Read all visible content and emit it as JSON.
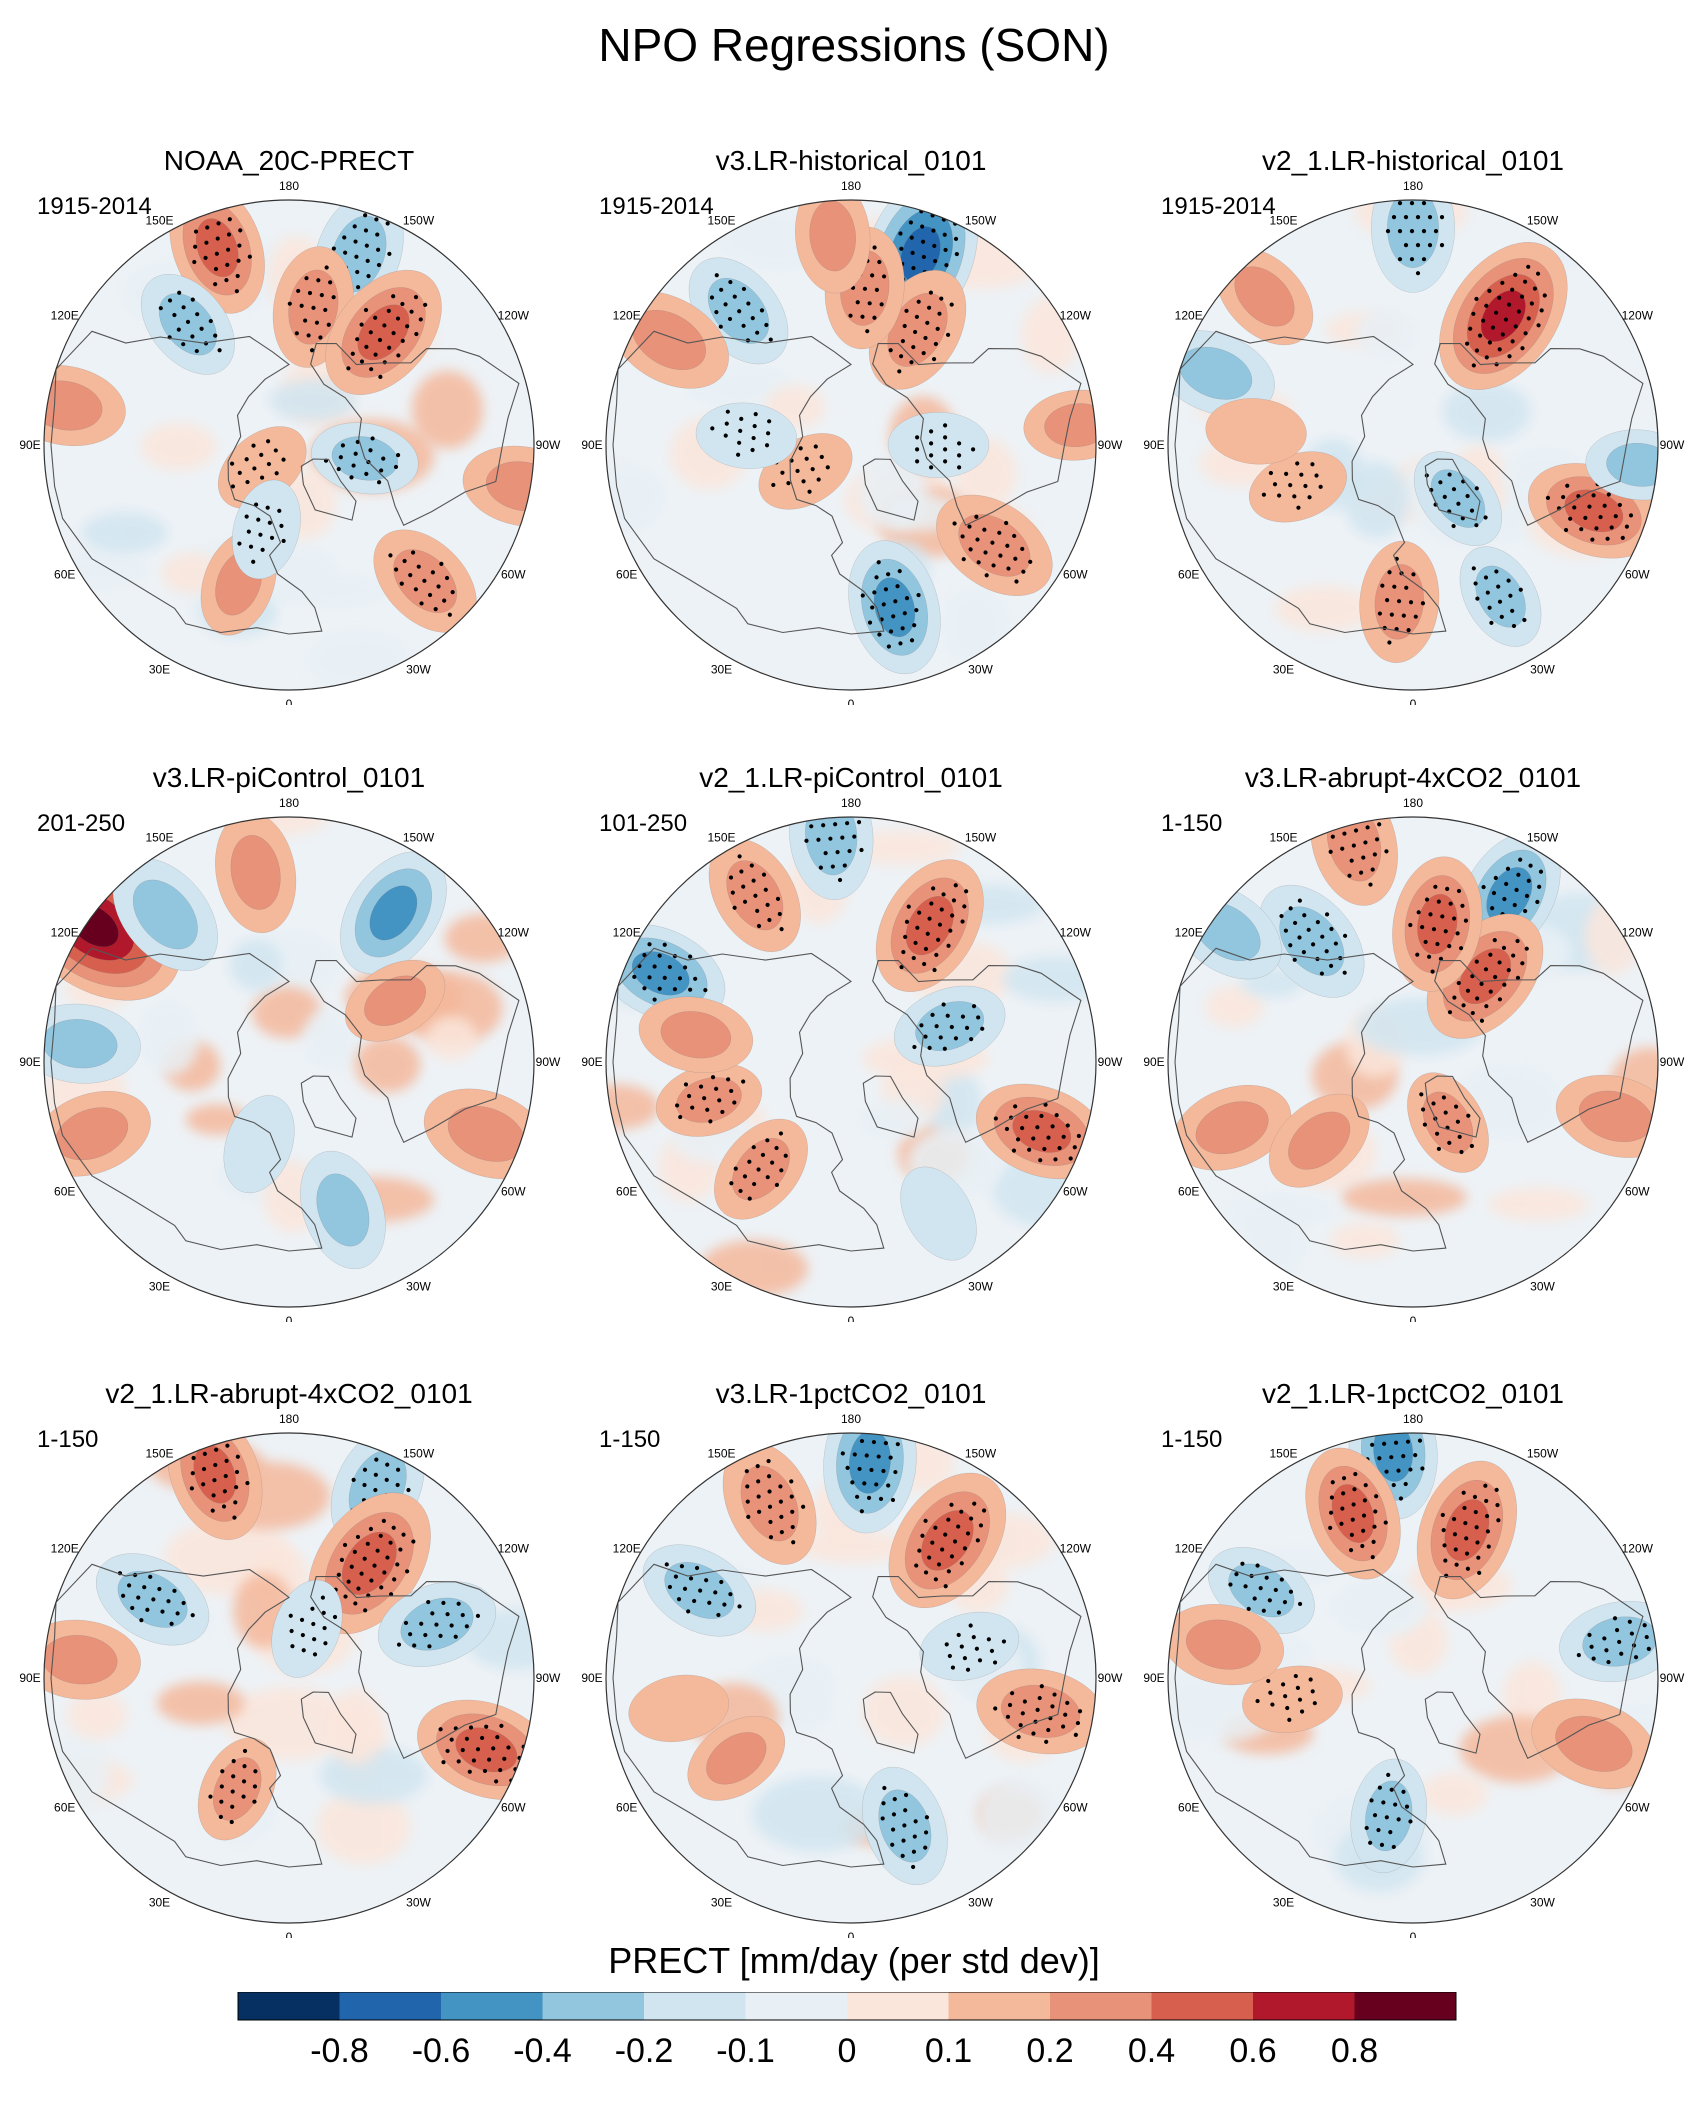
{
  "title": "NPO Regressions (SON)",
  "colors": {
    "palette": [
      "#053061",
      "#2166ac",
      "#4393c3",
      "#92c5de",
      "#d1e5f0",
      "#e8f0f5",
      "#fbe6dc",
      "#f4b89b",
      "#e8927a",
      "#d6604d",
      "#b2182b",
      "#67001f"
    ],
    "ocean_base": "#edf2f6",
    "coast": "#555555",
    "stipple": "#000000"
  },
  "chart_data": {
    "type": "heatmap",
    "projection": "north polar stereographic",
    "variable": "PRECT",
    "colorbar": {
      "label": "PRECT [mm/day (per std dev)]",
      "ticks": [
        "-0.8",
        "-0.6",
        "-0.4",
        "-0.2",
        "-0.1",
        "0",
        "0.1",
        "0.2",
        "0.4",
        "0.6",
        "0.8"
      ],
      "levels": [
        -0.8,
        -0.6,
        -0.4,
        -0.2,
        -0.1,
        0,
        0.1,
        0.2,
        0.4,
        0.6,
        0.8
      ]
    },
    "longitude_labels": [
      {
        "lon": 180,
        "text": "180"
      },
      {
        "lon": 150,
        "text": "150E"
      },
      {
        "lon": 120,
        "text": "120E"
      },
      {
        "lon": 90,
        "text": "90E"
      },
      {
        "lon": 60,
        "text": "60E"
      },
      {
        "lon": 30,
        "text": "30E"
      },
      {
        "lon": 0,
        "text": "0"
      },
      {
        "lon": -30,
        "text": "30W"
      },
      {
        "lon": -60,
        "text": "60W"
      },
      {
        "lon": -90,
        "text": "90W"
      },
      {
        "lon": -120,
        "text": "120W"
      },
      {
        "lon": -150,
        "text": "150W"
      }
    ],
    "panels": [
      {
        "title": "NOAA_20C-PRECT",
        "period": "1915-2014",
        "anomalies": [
          {
            "lon": -160,
            "lat": 32,
            "value": -0.35,
            "sig": true
          },
          {
            "lon": 160,
            "lat": 30,
            "value": 0.4,
            "sig": true
          },
          {
            "lon": -170,
            "lat": 50,
            "value": 0.3,
            "sig": true
          },
          {
            "lon": -140,
            "lat": 48,
            "value": 0.45,
            "sig": true
          },
          {
            "lon": 140,
            "lat": 45,
            "value": -0.25,
            "sig": true
          },
          {
            "lon": 50,
            "lat": 80,
            "value": 0.15,
            "sig": true
          },
          {
            "lon": -80,
            "lat": 68,
            "value": -0.2,
            "sig": true
          },
          {
            "lon": -80,
            "lat": 22,
            "value": 0.3,
            "sig": false
          },
          {
            "lon": -45,
            "lat": 35,
            "value": 0.3,
            "sig": true
          },
          {
            "lon": 100,
            "lat": 25,
            "value": 0.3,
            "sig": false
          },
          {
            "lon": 20,
            "lat": 48,
            "value": 0.2,
            "sig": false
          },
          {
            "lon": 15,
            "lat": 65,
            "value": -0.15,
            "sig": true
          }
        ]
      },
      {
        "title": "v3.LR-historical_0101",
        "period": "1915-2014",
        "anomalies": [
          {
            "lon": -160,
            "lat": 32,
            "value": -0.6,
            "sig": true
          },
          {
            "lon": -150,
            "lat": 52,
            "value": 0.35,
            "sig": true
          },
          {
            "lon": -175,
            "lat": 45,
            "value": 0.3,
            "sig": true
          },
          {
            "lon": 140,
            "lat": 40,
            "value": -0.3,
            "sig": true
          },
          {
            "lon": 120,
            "lat": 30,
            "value": 0.35,
            "sig": false
          },
          {
            "lon": 175,
            "lat": 30,
            "value": 0.25,
            "sig": false
          },
          {
            "lon": -15,
            "lat": 42,
            "value": -0.4,
            "sig": true
          },
          {
            "lon": -55,
            "lat": 40,
            "value": 0.35,
            "sig": true
          },
          {
            "lon": -90,
            "lat": 65,
            "value": -0.15,
            "sig": true
          },
          {
            "lon": 60,
            "lat": 75,
            "value": 0.15,
            "sig": true
          },
          {
            "lon": 95,
            "lat": 60,
            "value": -0.15,
            "sig": true
          },
          {
            "lon": -95,
            "lat": 25,
            "value": 0.2,
            "sig": false
          }
        ]
      },
      {
        "title": "v2_1.LR-historical_0101",
        "period": "1915-2014",
        "anomalies": [
          {
            "lon": 180,
            "lat": 28,
            "value": -0.35,
            "sig": true
          },
          {
            "lon": -145,
            "lat": 45,
            "value": 0.6,
            "sig": true
          },
          {
            "lon": 135,
            "lat": 30,
            "value": 0.25,
            "sig": false
          },
          {
            "lon": 110,
            "lat": 30,
            "value": -0.3,
            "sig": false
          },
          {
            "lon": -70,
            "lat": 35,
            "value": 0.4,
            "sig": true
          },
          {
            "lon": -85,
            "lat": 25,
            "value": -0.2,
            "sig": false
          },
          {
            "lon": 5,
            "lat": 45,
            "value": 0.3,
            "sig": true
          },
          {
            "lon": -30,
            "lat": 40,
            "value": -0.2,
            "sig": true
          },
          {
            "lon": 70,
            "lat": 55,
            "value": 0.15,
            "sig": true
          },
          {
            "lon": -40,
            "lat": 70,
            "value": -0.2,
            "sig": true
          },
          {
            "lon": 95,
            "lat": 45,
            "value": 0.15,
            "sig": false
          }
        ]
      },
      {
        "title": "v3.LR-piControl_0101",
        "period": "201-250",
        "anomalies": [
          {
            "lon": -145,
            "lat": 38,
            "value": -0.4,
            "sig": false
          },
          {
            "lon": 125,
            "lat": 22,
            "value": 0.8,
            "sig": false
          },
          {
            "lon": 140,
            "lat": 35,
            "value": -0.35,
            "sig": false
          },
          {
            "lon": 170,
            "lat": 35,
            "value": 0.3,
            "sig": false
          },
          {
            "lon": -70,
            "lat": 30,
            "value": 0.35,
            "sig": false
          },
          {
            "lon": -20,
            "lat": 45,
            "value": -0.3,
            "sig": false
          },
          {
            "lon": 95,
            "lat": 30,
            "value": -0.3,
            "sig": false
          },
          {
            "lon": 70,
            "lat": 30,
            "value": 0.3,
            "sig": false
          },
          {
            "lon": -120,
            "lat": 55,
            "value": 0.2,
            "sig": false
          },
          {
            "lon": 20,
            "lat": 65,
            "value": -0.15,
            "sig": false
          }
        ]
      },
      {
        "title": "v2_1.LR-piControl_0101",
        "period": "101-250",
        "anomalies": [
          {
            "lon": 175,
            "lat": 25,
            "value": -0.35,
            "sig": true
          },
          {
            "lon": -150,
            "lat": 45,
            "value": 0.45,
            "sig": true
          },
          {
            "lon": 150,
            "lat": 35,
            "value": 0.3,
            "sig": true
          },
          {
            "lon": 115,
            "lat": 30,
            "value": -0.4,
            "sig": true
          },
          {
            "lon": -70,
            "lat": 32,
            "value": 0.4,
            "sig": true
          },
          {
            "lon": -110,
            "lat": 60,
            "value": -0.25,
            "sig": true
          },
          {
            "lon": 40,
            "lat": 50,
            "value": 0.25,
            "sig": true
          },
          {
            "lon": 75,
            "lat": 48,
            "value": 0.2,
            "sig": true
          },
          {
            "lon": 100,
            "lat": 45,
            "value": 0.25,
            "sig": false
          },
          {
            "lon": -30,
            "lat": 40,
            "value": -0.15,
            "sig": false
          }
        ]
      },
      {
        "title": "v3.LR-abrupt-4xCO2_0101",
        "period": "1-150",
        "anomalies": [
          {
            "lon": 165,
            "lat": 25,
            "value": 0.35,
            "sig": true
          },
          {
            "lon": -150,
            "lat": 35,
            "value": -0.4,
            "sig": true
          },
          {
            "lon": -140,
            "lat": 58,
            "value": 0.45,
            "sig": true
          },
          {
            "lon": -170,
            "lat": 50,
            "value": 0.4,
            "sig": true
          },
          {
            "lon": 140,
            "lat": 45,
            "value": -0.35,
            "sig": true
          },
          {
            "lon": 125,
            "lat": 25,
            "value": -0.3,
            "sig": false
          },
          {
            "lon": -30,
            "lat": 70,
            "value": 0.2,
            "sig": true
          },
          {
            "lon": 70,
            "lat": 35,
            "value": 0.3,
            "sig": false
          },
          {
            "lon": -75,
            "lat": 30,
            "value": 0.3,
            "sig": false
          },
          {
            "lon": 50,
            "lat": 55,
            "value": 0.25,
            "sig": false
          }
        ]
      },
      {
        "title": "v2_1.LR-abrupt-4xCO2_0101",
        "period": "1-150",
        "anomalies": [
          {
            "lon": -155,
            "lat": 30,
            "value": -0.35,
            "sig": true
          },
          {
            "lon": -145,
            "lat": 50,
            "value": 0.55,
            "sig": true
          },
          {
            "lon": 160,
            "lat": 28,
            "value": 0.4,
            "sig": true
          },
          {
            "lon": -110,
            "lat": 45,
            "value": -0.3,
            "sig": true
          },
          {
            "lon": -70,
            "lat": 30,
            "value": 0.45,
            "sig": true
          },
          {
            "lon": 120,
            "lat": 45,
            "value": -0.3,
            "sig": true
          },
          {
            "lon": 95,
            "lat": 30,
            "value": 0.3,
            "sig": false
          },
          {
            "lon": 25,
            "lat": 55,
            "value": 0.2,
            "sig": true
          },
          {
            "lon": -160,
            "lat": 75,
            "value": -0.15,
            "sig": true
          }
        ]
      },
      {
        "title": "v3.LR-1pctCO2_0101",
        "period": "1-150",
        "anomalies": [
          {
            "lon": -175,
            "lat": 28,
            "value": -0.45,
            "sig": true
          },
          {
            "lon": -145,
            "lat": 42,
            "value": 0.5,
            "sig": true
          },
          {
            "lon": 155,
            "lat": 35,
            "value": 0.35,
            "sig": true
          },
          {
            "lon": 120,
            "lat": 40,
            "value": -0.3,
            "sig": true
          },
          {
            "lon": -80,
            "lat": 35,
            "value": 0.35,
            "sig": true
          },
          {
            "lon": -20,
            "lat": 45,
            "value": -0.3,
            "sig": true
          },
          {
            "lon": -105,
            "lat": 55,
            "value": -0.15,
            "sig": true
          },
          {
            "lon": 55,
            "lat": 50,
            "value": 0.2,
            "sig": false
          },
          {
            "lon": 80,
            "lat": 40,
            "value": 0.15,
            "sig": false
          }
        ]
      },
      {
        "title": "v2_1.LR-1pctCO2_0101",
        "period": "1-150",
        "anomalies": [
          {
            "lon": 175,
            "lat": 25,
            "value": -0.4,
            "sig": true
          },
          {
            "lon": -160,
            "lat": 45,
            "value": 0.45,
            "sig": true
          },
          {
            "lon": 160,
            "lat": 40,
            "value": 0.4,
            "sig": true
          },
          {
            "lon": 120,
            "lat": 40,
            "value": -0.25,
            "sig": true
          },
          {
            "lon": -70,
            "lat": 35,
            "value": 0.35,
            "sig": false
          },
          {
            "lon": -100,
            "lat": 30,
            "value": -0.3,
            "sig": true
          },
          {
            "lon": 10,
            "lat": 50,
            "value": -0.25,
            "sig": true
          },
          {
            "lon": 80,
            "lat": 55,
            "value": 0.15,
            "sig": true
          },
          {
            "lon": 100,
            "lat": 35,
            "value": 0.3,
            "sig": false
          }
        ]
      }
    ]
  }
}
